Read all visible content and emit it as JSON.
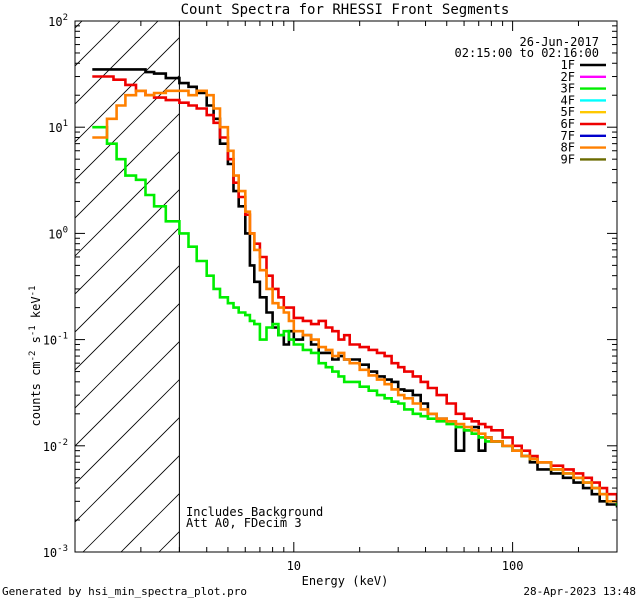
{
  "chart_data": {
    "type": "line",
    "title": "Count Spectra for RHESSI Front Segments",
    "xlabel": "Energy (keV)",
    "ylabel": "counts cm^-2 s^-1 keV^-1",
    "x_scale": "log",
    "y_scale": "log",
    "xlim": [
      1,
      300
    ],
    "ylim": [
      0.001,
      100
    ],
    "x_tick_labels": [
      {
        "value": 10,
        "label": "10"
      },
      {
        "value": 100,
        "label": "100"
      }
    ],
    "y_tick_labels": [
      {
        "value": 100,
        "base": "10",
        "exp": "2"
      },
      {
        "value": 10,
        "base": "10",
        "exp": "1"
      },
      {
        "value": 1,
        "base": "10",
        "exp": "0"
      },
      {
        "value": 0.1,
        "base": "10",
        "exp": "-1"
      },
      {
        "value": 0.01,
        "base": "10",
        "exp": "-2"
      },
      {
        "value": 0.001,
        "base": "10",
        "exp": "-3"
      }
    ],
    "hatched_region_max_energy": 3,
    "info": {
      "date": "26-Jun-2017",
      "time_range": "02:15:00 to 02:16:00"
    },
    "annotations": [
      "Includes Background",
      "Att A0, FDecim 3"
    ],
    "legend": [
      {
        "label": "1F",
        "color": "#000000"
      },
      {
        "label": "2F",
        "color": "#ff00ff"
      },
      {
        "label": "3F",
        "color": "#00ee00"
      },
      {
        "label": "4F",
        "color": "#00ffff"
      },
      {
        "label": "5F",
        "color": "#ffc800"
      },
      {
        "label": "6F",
        "color": "#ee0000"
      },
      {
        "label": "7F",
        "color": "#0000cc"
      },
      {
        "label": "8F",
        "color": "#ff8000"
      },
      {
        "label": "9F",
        "color": "#6b6b00"
      }
    ],
    "series": [
      {
        "name": "1F",
        "color": "#000000",
        "points": [
          [
            1.2,
            35
          ],
          [
            1.3,
            35
          ],
          [
            1.5,
            35
          ],
          [
            1.7,
            35
          ],
          [
            1.9,
            35
          ],
          [
            2.1,
            33
          ],
          [
            2.3,
            32
          ],
          [
            2.6,
            29
          ],
          [
            3,
            26
          ],
          [
            3.3,
            24
          ],
          [
            3.6,
            21
          ],
          [
            4,
            16
          ],
          [
            4.3,
            12
          ],
          [
            4.6,
            7
          ],
          [
            5,
            4.5
          ],
          [
            5.3,
            2.5
          ],
          [
            5.6,
            1.8
          ],
          [
            6,
            1.0
          ],
          [
            6.3,
            0.5
          ],
          [
            6.6,
            0.35
          ],
          [
            7,
            0.25
          ],
          [
            7.5,
            0.18
          ],
          [
            8,
            0.13
          ],
          [
            8.5,
            0.11
          ],
          [
            9,
            0.09
          ],
          [
            9.5,
            0.12
          ],
          [
            10,
            0.1
          ],
          [
            11,
            0.11
          ],
          [
            12,
            0.09
          ],
          [
            13,
            0.075
          ],
          [
            14,
            0.075
          ],
          [
            15,
            0.065
          ],
          [
            16,
            0.07
          ],
          [
            17,
            0.065
          ],
          [
            18,
            0.065
          ],
          [
            20,
            0.058
          ],
          [
            22,
            0.05
          ],
          [
            24,
            0.045
          ],
          [
            26,
            0.042
          ],
          [
            28,
            0.04
          ],
          [
            30,
            0.034
          ],
          [
            32,
            0.033
          ],
          [
            35,
            0.03
          ],
          [
            38,
            0.025
          ],
          [
            41,
            0.02
          ],
          [
            45,
            0.018
          ],
          [
            50,
            0.017
          ],
          [
            55,
            0.009
          ],
          [
            60,
            0.014
          ],
          [
            65,
            0.015
          ],
          [
            70,
            0.009
          ],
          [
            75,
            0.012
          ],
          [
            80,
            0.011
          ],
          [
            90,
            0.01
          ],
          [
            100,
            0.009
          ],
          [
            110,
            0.008
          ],
          [
            120,
            0.007
          ],
          [
            130,
            0.006
          ],
          [
            150,
            0.0055
          ],
          [
            170,
            0.005
          ],
          [
            190,
            0.0045
          ],
          [
            210,
            0.004
          ],
          [
            230,
            0.0035
          ],
          [
            250,
            0.003
          ],
          [
            270,
            0.0028
          ],
          [
            300,
            0.0027
          ]
        ]
      },
      {
        "name": "3F",
        "color": "#00ee00",
        "points": [
          [
            1.2,
            10
          ],
          [
            1.3,
            10
          ],
          [
            1.4,
            7
          ],
          [
            1.55,
            5
          ],
          [
            1.7,
            3.5
          ],
          [
            1.9,
            3.2
          ],
          [
            2.1,
            2.3
          ],
          [
            2.3,
            1.8
          ],
          [
            2.6,
            1.3
          ],
          [
            3,
            1.0
          ],
          [
            3.3,
            0.75
          ],
          [
            3.6,
            0.55
          ],
          [
            4,
            0.4
          ],
          [
            4.3,
            0.3
          ],
          [
            4.6,
            0.25
          ],
          [
            5,
            0.22
          ],
          [
            5.3,
            0.2
          ],
          [
            5.6,
            0.18
          ],
          [
            6,
            0.17
          ],
          [
            6.3,
            0.15
          ],
          [
            6.6,
            0.14
          ],
          [
            7,
            0.1
          ],
          [
            7.5,
            0.13
          ],
          [
            8,
            0.14
          ],
          [
            8.5,
            0.11
          ],
          [
            9,
            0.12
          ],
          [
            9.5,
            0.1
          ],
          [
            10,
            0.09
          ],
          [
            11,
            0.08
          ],
          [
            12,
            0.075
          ],
          [
            13,
            0.06
          ],
          [
            14,
            0.055
          ],
          [
            15,
            0.05
          ],
          [
            16,
            0.045
          ],
          [
            17,
            0.04
          ],
          [
            18,
            0.04
          ],
          [
            20,
            0.036
          ],
          [
            22,
            0.033
          ],
          [
            24,
            0.03
          ],
          [
            26,
            0.028
          ],
          [
            28,
            0.026
          ],
          [
            30,
            0.025
          ],
          [
            32,
            0.022
          ],
          [
            35,
            0.02
          ],
          [
            38,
            0.019
          ],
          [
            41,
            0.018
          ],
          [
            45,
            0.017
          ],
          [
            50,
            0.016
          ],
          [
            55,
            0.015
          ],
          [
            60,
            0.014
          ],
          [
            65,
            0.013
          ],
          [
            70,
            0.012
          ],
          [
            75,
            0.011
          ],
          [
            80,
            0.011
          ],
          [
            90,
            0.01
          ],
          [
            100,
            0.009
          ],
          [
            110,
            0.008
          ],
          [
            120,
            0.0075
          ],
          [
            130,
            0.007
          ],
          [
            150,
            0.006
          ],
          [
            170,
            0.0055
          ],
          [
            190,
            0.005
          ],
          [
            210,
            0.0045
          ],
          [
            230,
            0.004
          ],
          [
            250,
            0.0035
          ],
          [
            270,
            0.003
          ],
          [
            300,
            0.0028
          ]
        ]
      },
      {
        "name": "6F",
        "color": "#ee0000",
        "points": [
          [
            1.2,
            30
          ],
          [
            1.3,
            30
          ],
          [
            1.5,
            28
          ],
          [
            1.7,
            25
          ],
          [
            1.9,
            22
          ],
          [
            2.1,
            20
          ],
          [
            2.3,
            19
          ],
          [
            2.6,
            18
          ],
          [
            3,
            17
          ],
          [
            3.3,
            16
          ],
          [
            3.6,
            15
          ],
          [
            4,
            13
          ],
          [
            4.3,
            11
          ],
          [
            4.6,
            8
          ],
          [
            5,
            5
          ],
          [
            5.3,
            3
          ],
          [
            5.6,
            2.2
          ],
          [
            6,
            1.5
          ],
          [
            6.3,
            1
          ],
          [
            6.6,
            0.8
          ],
          [
            7,
            0.6
          ],
          [
            7.5,
            0.4
          ],
          [
            8,
            0.3
          ],
          [
            8.5,
            0.25
          ],
          [
            9,
            0.2
          ],
          [
            9.5,
            0.2
          ],
          [
            10,
            0.16
          ],
          [
            11,
            0.15
          ],
          [
            12,
            0.14
          ],
          [
            13,
            0.15
          ],
          [
            14,
            0.13
          ],
          [
            15,
            0.12
          ],
          [
            16,
            0.1
          ],
          [
            17,
            0.11
          ],
          [
            18,
            0.09
          ],
          [
            20,
            0.085
          ],
          [
            22,
            0.08
          ],
          [
            24,
            0.075
          ],
          [
            26,
            0.07
          ],
          [
            28,
            0.06
          ],
          [
            30,
            0.055
          ],
          [
            32,
            0.05
          ],
          [
            35,
            0.045
          ],
          [
            38,
            0.04
          ],
          [
            41,
            0.035
          ],
          [
            45,
            0.03
          ],
          [
            50,
            0.025
          ],
          [
            55,
            0.02
          ],
          [
            60,
            0.018
          ],
          [
            65,
            0.017
          ],
          [
            70,
            0.016
          ],
          [
            75,
            0.015
          ],
          [
            80,
            0.014
          ],
          [
            90,
            0.012
          ],
          [
            100,
            0.01
          ],
          [
            110,
            0.009
          ],
          [
            120,
            0.008
          ],
          [
            130,
            0.007
          ],
          [
            150,
            0.0065
          ],
          [
            170,
            0.006
          ],
          [
            190,
            0.0055
          ],
          [
            210,
            0.005
          ],
          [
            230,
            0.0045
          ],
          [
            250,
            0.004
          ],
          [
            270,
            0.0035
          ],
          [
            300,
            0.003
          ]
        ]
      },
      {
        "name": "8F",
        "color": "#ff8000",
        "points": [
          [
            1.2,
            8
          ],
          [
            1.3,
            8
          ],
          [
            1.4,
            12
          ],
          [
            1.55,
            16
          ],
          [
            1.7,
            20
          ],
          [
            1.9,
            22
          ],
          [
            2.1,
            20
          ],
          [
            2.3,
            21
          ],
          [
            2.6,
            22
          ],
          [
            3,
            22
          ],
          [
            3.3,
            20
          ],
          [
            3.6,
            22
          ],
          [
            4,
            20
          ],
          [
            4.3,
            15
          ],
          [
            4.6,
            10
          ],
          [
            5,
            6
          ],
          [
            5.3,
            3.5
          ],
          [
            5.6,
            2.5
          ],
          [
            6,
            1.6
          ],
          [
            6.3,
            1
          ],
          [
            6.6,
            0.7
          ],
          [
            7,
            0.45
          ],
          [
            7.5,
            0.3
          ],
          [
            8,
            0.22
          ],
          [
            8.5,
            0.2
          ],
          [
            9,
            0.18
          ],
          [
            9.5,
            0.15
          ],
          [
            10,
            0.12
          ],
          [
            11,
            0.11
          ],
          [
            12,
            0.1
          ],
          [
            13,
            0.085
          ],
          [
            14,
            0.08
          ],
          [
            15,
            0.07
          ],
          [
            16,
            0.075
          ],
          [
            17,
            0.065
          ],
          [
            18,
            0.06
          ],
          [
            20,
            0.052
          ],
          [
            22,
            0.046
          ],
          [
            24,
            0.042
          ],
          [
            26,
            0.038
          ],
          [
            28,
            0.034
          ],
          [
            30,
            0.03
          ],
          [
            32,
            0.028
          ],
          [
            35,
            0.025
          ],
          [
            38,
            0.022
          ],
          [
            41,
            0.02
          ],
          [
            45,
            0.018
          ],
          [
            50,
            0.017
          ],
          [
            55,
            0.016
          ],
          [
            60,
            0.015
          ],
          [
            65,
            0.014
          ],
          [
            70,
            0.013
          ],
          [
            75,
            0.012
          ],
          [
            80,
            0.011
          ],
          [
            90,
            0.01
          ],
          [
            100,
            0.009
          ],
          [
            110,
            0.008
          ],
          [
            120,
            0.0075
          ],
          [
            130,
            0.007
          ],
          [
            150,
            0.006
          ],
          [
            170,
            0.0055
          ],
          [
            190,
            0.005
          ],
          [
            210,
            0.0045
          ],
          [
            230,
            0.004
          ],
          [
            250,
            0.0035
          ],
          [
            270,
            0.003
          ],
          [
            300,
            0.003
          ]
        ]
      }
    ]
  },
  "footer": {
    "left": "Generated by hsi_min_spectra_plot.pro",
    "right": "28-Apr-2023 13:48"
  }
}
